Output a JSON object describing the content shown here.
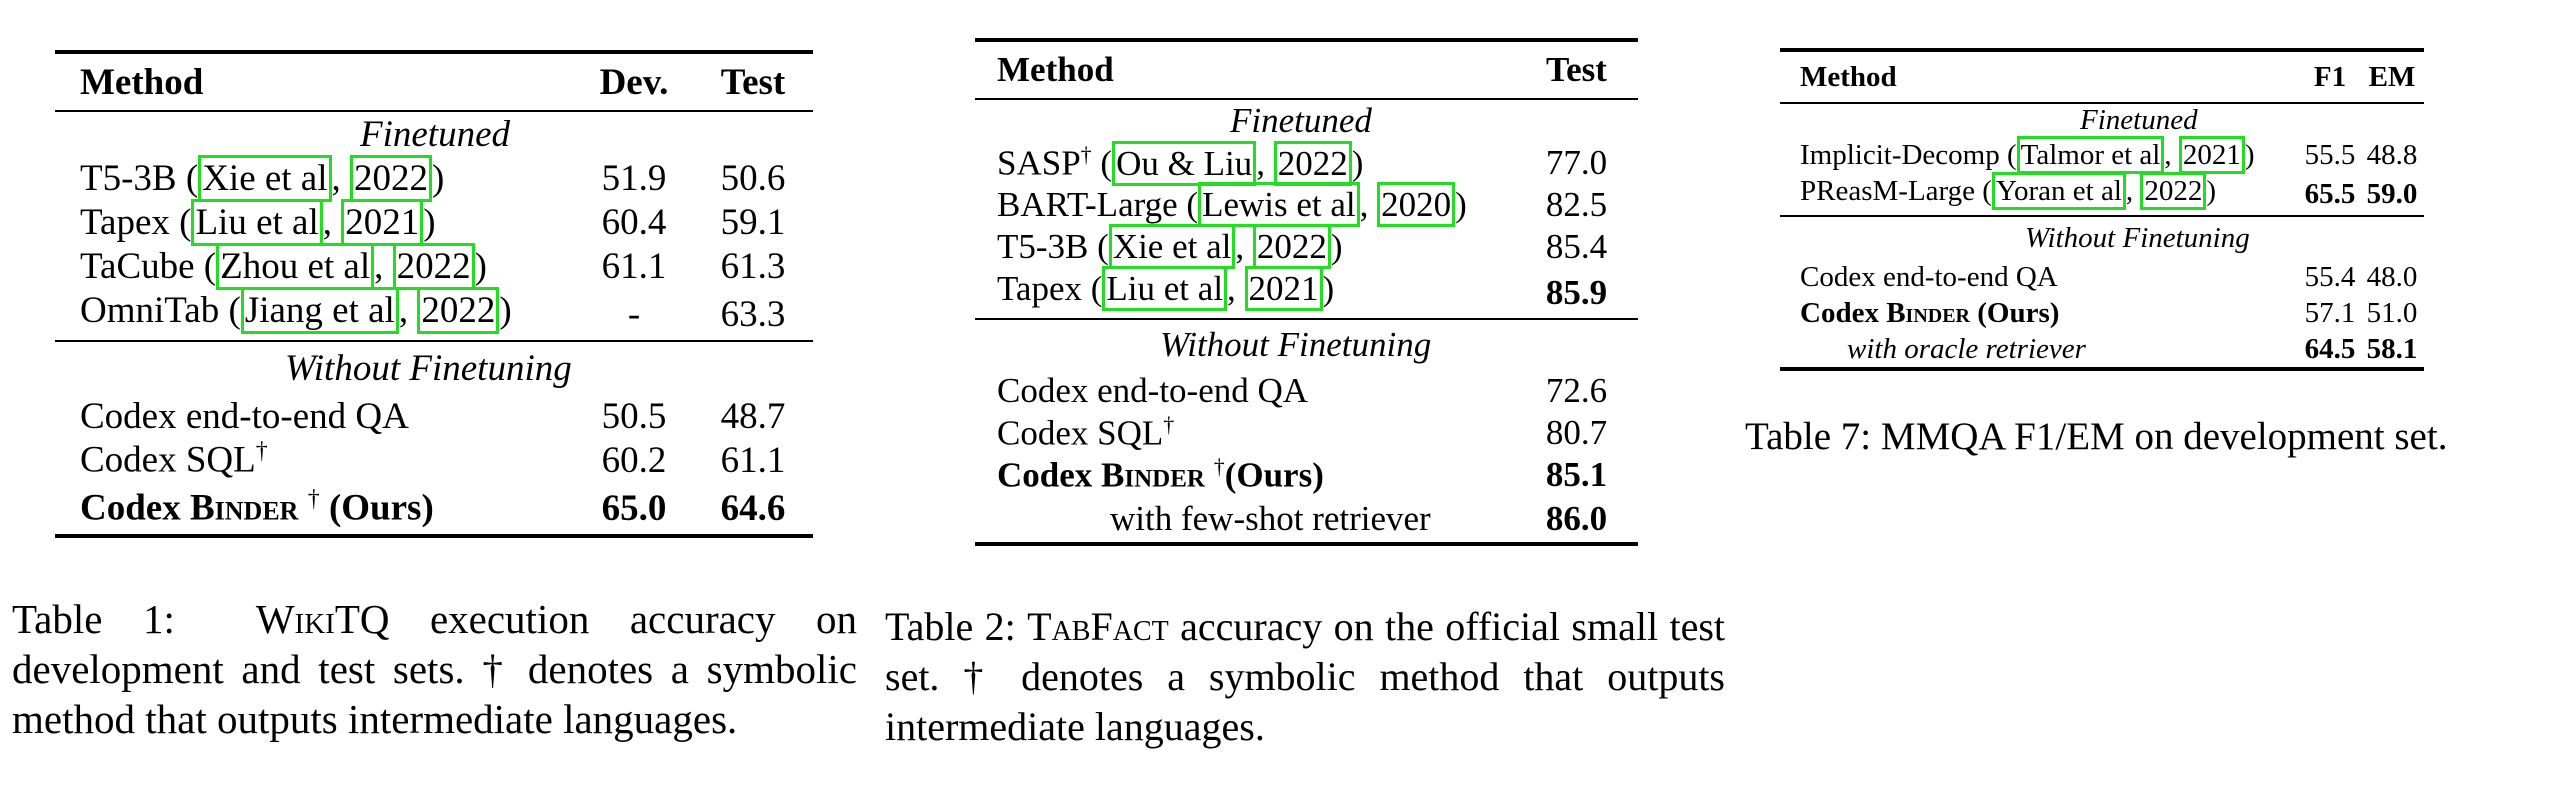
{
  "table1": {
    "headers": [
      "Method",
      "Dev.",
      "Test"
    ],
    "section_finetuned": "Finetuned",
    "section_without": "Without Finetuning",
    "rows_finetuned": [
      {
        "name": "T5-3B",
        "cite_author": "Xie et al",
        "cite_year": "2022",
        "dev": "51.9",
        "test": "50.6"
      },
      {
        "name": "Tapex",
        "cite_author": "Liu et al",
        "cite_year": "2021",
        "dev": "60.4",
        "test": "59.1"
      },
      {
        "name": "TaCube",
        "cite_author": "Zhou et al",
        "cite_year": "2022",
        "dev": "61.1",
        "test": "61.3"
      },
      {
        "name": "OmniTab",
        "cite_author": "Jiang et al",
        "cite_year": "2022",
        "dev": "-",
        "test": "63.3"
      }
    ],
    "rows_without": [
      {
        "name": "Codex end-to-end QA",
        "dev": "50.5",
        "test": "48.7"
      },
      {
        "name": "Codex SQL",
        "sup": "†",
        "dev": "60.2",
        "test": "61.1"
      },
      {
        "name_pre": "Codex ",
        "name_sc": "Binder",
        "sup": "†",
        "name_post": " (Ours)",
        "dev": "65.0",
        "test": "64.6"
      }
    ]
  },
  "caption1": {
    "lead": "Table 1:",
    "sc": "WikiTQ",
    "rest": " execution accuracy on development and test sets. † denotes a symbolic method that outputs intermediate languages."
  },
  "table2": {
    "headers": [
      "Method",
      "Test"
    ],
    "section_finetuned": "Finetuned",
    "section_without": "Without Finetuning",
    "rows_finetuned": [
      {
        "name": "SASP",
        "sup": "†",
        "cite_author": "Ou & Liu",
        "cite_year": "2022",
        "test": "77.0"
      },
      {
        "name": "BART-Large",
        "cite_author": "Lewis et al",
        "cite_year": "2020",
        "test": "82.5"
      },
      {
        "name": "T5-3B",
        "cite_author": "Xie et al",
        "cite_year": "2022",
        "test": "85.4"
      },
      {
        "name": "Tapex",
        "cite_author": "Liu et al",
        "cite_year": "2021",
        "test": "85.9"
      }
    ],
    "rows_without": [
      {
        "name": "Codex end-to-end QA",
        "test": "72.6"
      },
      {
        "name": "Codex SQL",
        "sup": "†",
        "test": "80.7"
      },
      {
        "name_pre": "Codex ",
        "name_sc": "Binder",
        "sup": "†",
        "name_post": "(Ours)",
        "test": "85.1"
      },
      {
        "name": "with few-shot retriever",
        "test": "86.0"
      }
    ]
  },
  "caption2": {
    "lead": "Table 2:",
    "sc": "TabFact",
    "rest": " accuracy on the official small test set. † denotes a symbolic method that outputs intermediate languages."
  },
  "table3": {
    "headers": [
      "Method",
      "F1",
      "EM"
    ],
    "section_finetuned": "Finetuned",
    "section_without": "Without Finetuning",
    "rows_finetuned": [
      {
        "name": "Implicit-Decomp",
        "cite_author": "Talmor et al",
        "cite_year": "2021",
        "f1": "55.5",
        "em": "48.8"
      },
      {
        "name": "PReasM-Large",
        "cite_author": "Yoran et al",
        "cite_year": "2022",
        "f1": "65.5",
        "em": "59.0"
      }
    ],
    "rows_without": [
      {
        "name": "Codex end-to-end QA",
        "f1": "55.4",
        "em": "48.0"
      },
      {
        "name_pre": "Codex ",
        "name_sc": "Binder",
        "name_post": " (Ours)",
        "f1": "57.1",
        "em": "51.0"
      },
      {
        "name": "with oracle retriever",
        "f1": "64.5",
        "em": "58.1"
      }
    ]
  },
  "caption3": {
    "text": "Table 7: MMQA F1/EM on development set."
  }
}
